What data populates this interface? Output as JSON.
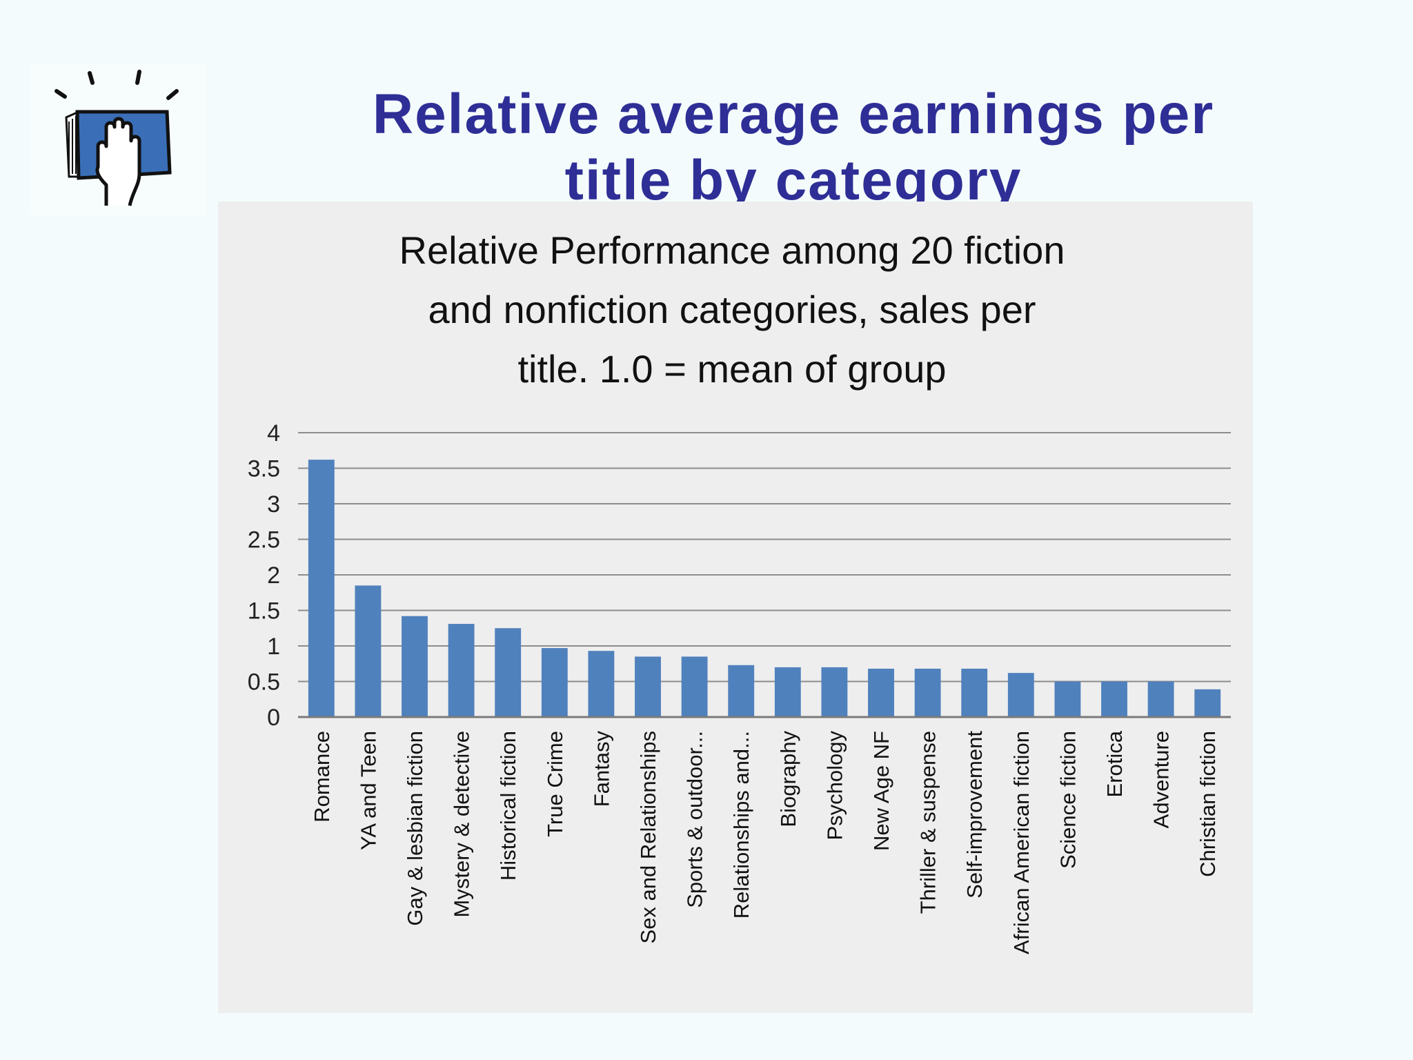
{
  "header": {
    "title_line1": "Relative average earnings per",
    "title_line2": "title by category"
  },
  "logo": {
    "icon": "book-with-raised-hand-icon"
  },
  "colors": {
    "title": "#2e2e96",
    "bar": "#4f81bd",
    "gridline": "#8c8c8c"
  },
  "chart_data": {
    "type": "bar",
    "title_lines": [
      "Relative Performance among 20 fiction",
      "and nonfiction categories, sales per",
      "title.  1.0 = mean of group"
    ],
    "categories": [
      "Romance",
      "YA and Teen",
      "Gay & lesbian fiction",
      "Mystery & detective",
      "Historical fiction",
      "True Crime",
      "Fantasy",
      "Sex and Relationships",
      "Sports & outdoor...",
      "Relationships and...",
      "Biography",
      "Psychology",
      "New Age NF",
      "Thriller & suspense",
      "Self-improvement",
      "African American fiction",
      "Science fiction",
      "Erotica",
      "Adventure",
      "Christian fiction"
    ],
    "values": [
      3.62,
      1.85,
      1.42,
      1.31,
      1.25,
      0.97,
      0.93,
      0.85,
      0.85,
      0.73,
      0.7,
      0.7,
      0.68,
      0.68,
      0.68,
      0.62,
      0.5,
      0.5,
      0.5,
      0.39
    ],
    "yticks": [
      "0",
      "0.5",
      "1",
      "1.5",
      "2",
      "2.5",
      "3",
      "3.5",
      "4"
    ],
    "ylim": [
      0,
      4
    ],
    "grid": true,
    "legend": "none"
  }
}
